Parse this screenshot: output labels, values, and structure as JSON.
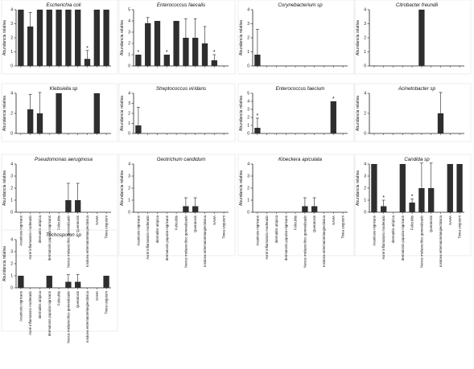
{
  "chart_data": [
    {
      "type": "bar",
      "title": "Escherichia coli",
      "ylabel": "Abundancia relativa",
      "ylim": [
        0,
        4
      ],
      "yticks": [
        0,
        1,
        2,
        3,
        4
      ],
      "categories": [
        "Acantosis nigricans",
        "Acné inflamatorio moderado",
        "dermatitis atópica",
        "dermatosis papular nigricans",
        "Foliculitis",
        "Nevus melanocítico generalizado",
        "Queratosis",
        "rosácea eritematotelangiectásica",
        "SAHA",
        "Tinea unguium"
      ],
      "values": [
        4,
        2.8,
        4,
        4,
        4,
        4,
        4,
        0.5,
        4,
        4
      ],
      "errors": [
        0,
        1,
        0,
        0,
        0,
        0,
        0,
        0.6,
        0,
        0
      ],
      "stars": [
        7
      ]
    },
    {
      "type": "bar",
      "title": "Enterococcus faecalis",
      "ylabel": "Abundancia relativa",
      "ylim": [
        0,
        5
      ],
      "yticks": [
        0,
        1,
        2,
        3,
        4,
        5
      ],
      "categories": [
        "Acantosis nigricans",
        "Acné inflamatorio moderado",
        "dermatitis atópica",
        "dermatosis papular nigricans",
        "Foliculitis",
        "Nevus melanocítico generalizado",
        "Queratosis",
        "rosácea eritematotelangiectásica",
        "SAHA",
        "Tinea unguium"
      ],
      "values": [
        1,
        3.8,
        4,
        1,
        4,
        2.5,
        2.5,
        2,
        0.5,
        0
      ],
      "errors": [
        0,
        0.5,
        0,
        0,
        0,
        1.7,
        1.7,
        1.5,
        0.5,
        0
      ],
      "stars": [
        0,
        3,
        8
      ]
    },
    {
      "type": "bar",
      "title": "Corynebacterium sp",
      "ylabel": "Abundancia relativa",
      "ylim": [
        0,
        4
      ],
      "yticks": [
        0,
        1,
        2,
        3,
        4
      ],
      "categories": [
        "Acantosis nigricans",
        "Acné inflamatorio moderado",
        "dermatitis atópica",
        "dermatosis papular nigricans",
        "Foliculitis",
        "Nevus melanocítico generalizado",
        "Queratosis",
        "rosácea eritematotelangiectásica",
        "SAHA",
        "Tinea unguium"
      ],
      "values": [
        0.8,
        0,
        0,
        0,
        0,
        0,
        0,
        0,
        0,
        0
      ],
      "errors": [
        1.8,
        0,
        0,
        0,
        0,
        0,
        0,
        0,
        0,
        0
      ],
      "stars": []
    },
    {
      "type": "bar",
      "title": "Citrobacter freundii",
      "ylabel": "Abundancia relativa",
      "ylim": [
        0,
        4
      ],
      "yticks": [
        0,
        1,
        2,
        3,
        4
      ],
      "categories": [
        "Acantosis nigricans",
        "Acné inflamatorio moderado",
        "dermatitis atópica",
        "dermatosis papular nigricans",
        "Foliculitis",
        "Nevus melanocítico generalizado",
        "Queratosis",
        "rosácea eritematotelangiectásica",
        "SAHA",
        "Tinea unguium"
      ],
      "values": [
        0,
        0,
        0,
        0,
        0,
        4,
        0,
        0,
        0,
        0
      ],
      "errors": [
        0,
        0,
        0,
        0,
        0,
        0,
        0,
        0,
        0,
        0
      ],
      "stars": []
    },
    {
      "type": "bar",
      "title": "Klebsiella sp",
      "ylabel": "Abundancia relativa",
      "ylim": [
        0,
        4
      ],
      "yticks": [
        0,
        2,
        4
      ],
      "categories": [
        "Acantosis nigricans",
        "Acné inflamatorio moderado",
        "dermatitis atópica",
        "dermatosis papular nigricans",
        "Foliculitis",
        "Nevus melanocítico generalizado",
        "Queratosis",
        "rosácea eritematotelangiectásica",
        "SAHA",
        "Tinea unguium"
      ],
      "values": [
        0,
        2.4,
        2,
        0,
        4,
        0,
        0,
        0,
        4,
        0
      ],
      "errors": [
        0,
        1.5,
        2.7,
        0,
        0,
        0,
        0,
        0,
        0,
        0
      ],
      "stars": []
    },
    {
      "type": "bar",
      "title": "Streptococcus viridans",
      "ylabel": "Abundancia relativa",
      "ylim": [
        0,
        4
      ],
      "yticks": [
        0,
        1,
        2,
        3,
        4
      ],
      "categories": [
        "Acantosis nigricans",
        "Acné inflamatorio moderado",
        "dermatitis atópica",
        "dermatosis papular nigricans",
        "Foliculitis",
        "Nevus melanocítico generalizado",
        "Queratosis",
        "rosácea eritematotelangiectásica",
        "SAHA",
        "Tinea unguium"
      ],
      "values": [
        0.8,
        0,
        0,
        0,
        0,
        0,
        0,
        0,
        0,
        0
      ],
      "errors": [
        1.8,
        0,
        0,
        0,
        0,
        0,
        0,
        0,
        0,
        0
      ],
      "stars": []
    },
    {
      "type": "bar",
      "title": "Enterococcus faecium",
      "ylabel": "Abundancia relativa",
      "ylim": [
        0,
        5
      ],
      "yticks": [
        0,
        1,
        2,
        3,
        4,
        5
      ],
      "categories": [
        "Acantosis nigricans",
        "Acné inflamatorio moderado",
        "dermatitis atópica",
        "dermatosis papular nigricans",
        "Foliculitis",
        "Nevus melanocítico generalizado",
        "Queratosis",
        "rosácea eritematotelangiectásica",
        "SAHA",
        "Tinea unguium"
      ],
      "values": [
        0.7,
        0,
        0,
        0,
        0,
        0,
        0,
        0,
        4,
        0
      ],
      "errors": [
        1.2,
        0,
        0,
        0,
        0,
        0,
        0,
        0,
        0,
        0
      ],
      "stars": [
        0,
        8
      ]
    },
    {
      "type": "bar",
      "title": "Acinetobacter sp",
      "ylabel": "Abundancia relativa",
      "ylim": [
        0,
        4
      ],
      "yticks": [
        0,
        2,
        4
      ],
      "categories": [
        "Acantosis nigricans",
        "Acné inflamatorio moderado",
        "dermatitis atópica",
        "dermatosis papular nigricans",
        "Foliculitis",
        "Nevus melanocítico generalizado",
        "Queratosis",
        "rosácea eritematotelangiectásica",
        "SAHA",
        "Tinea unguium"
      ],
      "values": [
        0,
        0,
        0,
        0,
        0,
        0,
        0,
        2,
        0,
        0
      ],
      "errors": [
        0,
        0,
        0,
        0,
        0,
        0,
        0,
        3,
        0,
        0
      ],
      "stars": []
    },
    {
      "type": "bar",
      "title": "Pseudomonas aeruginosa",
      "ylabel": "Abundancia relativa",
      "ylim": [
        0,
        4
      ],
      "yticks": [
        0,
        1,
        2,
        3,
        4
      ],
      "categories": [
        "Acantosis nigricans",
        "Acné inflamatorio moderado",
        "dermatitis atópica",
        "dermatosis papular nigricans",
        "Foliculitis",
        "Nevus melanocítico generalizado",
        "Queratosis",
        "rosácea eritematotelangiectásica",
        "SAHA",
        "Tinea unguium"
      ],
      "values": [
        0,
        0,
        0,
        0,
        0,
        1,
        1,
        0,
        0,
        0
      ],
      "errors": [
        0,
        0,
        0,
        0,
        0,
        1.4,
        1.4,
        0,
        0,
        0
      ],
      "stars": []
    },
    {
      "type": "bar",
      "title": "Geotrichum candidum",
      "ylabel": "Abundancia relativa",
      "ylim": [
        0,
        4
      ],
      "yticks": [
        0,
        1,
        2,
        3,
        4
      ],
      "categories": [
        "Acantosis nigricans",
        "Acné inflamatorio moderado",
        "dermatitis atópica",
        "dermatosis papular nigricans",
        "Foliculitis",
        "Nevus melanocítico generalizado",
        "Queratosis",
        "rosácea eritematotelangiectásica",
        "SAHA",
        "Tinea unguium"
      ],
      "values": [
        0,
        0,
        0,
        0,
        0,
        0.5,
        0.5,
        0,
        0,
        0
      ],
      "errors": [
        0,
        0,
        0,
        0,
        0,
        0.7,
        0.7,
        0,
        0,
        0
      ],
      "stars": []
    },
    {
      "type": "bar",
      "title": "Kloeckera apiculata",
      "ylabel": "Abundancia relativa",
      "ylim": [
        0,
        4
      ],
      "yticks": [
        0,
        1,
        2,
        3,
        4
      ],
      "categories": [
        "Acantosis nigricans",
        "Acné inflamatorio moderado",
        "dermatitis atópica",
        "dermatosis papular nigricans",
        "Foliculitis",
        "Nevus melanocítico generalizado",
        "Queratosis",
        "rosácea eritematotelangiectásica",
        "SAHA",
        "Tinea unguium"
      ],
      "values": [
        0,
        0,
        0,
        0,
        0,
        0.5,
        0.5,
        0,
        0,
        0
      ],
      "errors": [
        0,
        0,
        0,
        0,
        0,
        0.7,
        0.7,
        0,
        0,
        0
      ],
      "stars": []
    },
    {
      "type": "bar",
      "title": "Candida sp",
      "ylabel": "Abundancia relativa",
      "ylim": [
        0,
        4
      ],
      "yticks": [
        0,
        1,
        2,
        3,
        4
      ],
      "categories": [
        "Acantosis nigricans",
        "Acné inflamatorio moderado",
        "dermatitis atópica",
        "dermatosis papular nigricans",
        "Foliculitis",
        "Nevus melanocítico generalizado",
        "Queratosis",
        "rosácea eritematotelangiectásica",
        "SAHA",
        "Tinea unguium"
      ],
      "values": [
        4,
        0.5,
        0,
        4,
        0.8,
        2,
        2,
        0,
        4,
        4
      ],
      "errors": [
        0,
        0.5,
        0,
        0,
        0.3,
        3,
        3,
        0,
        0,
        0
      ],
      "stars": [
        1,
        4
      ]
    },
    {
      "type": "bar",
      "title": "Trichosporon sp",
      "ylabel": "Abundancia relativa",
      "ylim": [
        0,
        4
      ],
      "yticks": [
        0,
        1,
        2,
        3,
        4
      ],
      "categories": [
        "Acantosis nigricans",
        "Acné inflamatorio moderado",
        "dermatitis atópica",
        "dermatosis papular nigricans",
        "Foliculitis",
        "Nevus melanocítico generalizado",
        "Queratosis",
        "rosácea eritematotelangiectásica",
        "SAHA",
        "Tinea unguium"
      ],
      "values": [
        1,
        0,
        0,
        1,
        0,
        0.5,
        0.5,
        0,
        0,
        1
      ],
      "errors": [
        0,
        0,
        0,
        0,
        0,
        0.6,
        0.6,
        0,
        0,
        0
      ],
      "stars": []
    }
  ]
}
